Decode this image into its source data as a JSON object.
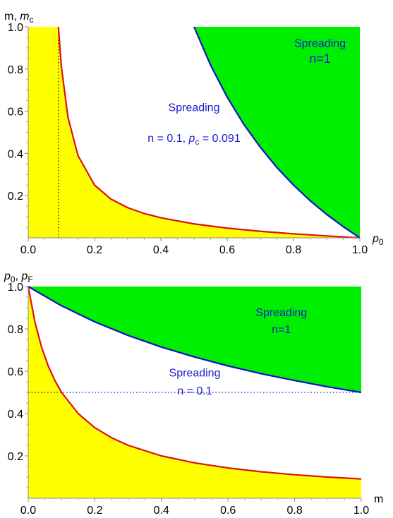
{
  "chart_data": [
    {
      "type": "area",
      "xlabel": "p",
      "xlabel_sub": "0",
      "ylabel_parts": [
        "m, ",
        "m",
        "c"
      ],
      "xlim": [
        0,
        1
      ],
      "ylim": [
        0,
        1
      ],
      "x_ticks": [
        "0.0",
        "0.2",
        "0.4",
        "0.6",
        "0.8",
        "1.0"
      ],
      "y_ticks": [
        "0.2",
        "0.4",
        "0.6",
        "0.8",
        "1.0"
      ],
      "x_tick_values": [
        0,
        0.2,
        0.4,
        0.6,
        0.8,
        1.0
      ],
      "y_tick_values": [
        0.2,
        0.4,
        0.6,
        0.8,
        1.0
      ],
      "series": [
        {
          "name": "n = 0.1",
          "color": "#e01010",
          "fill": "#ffff00",
          "x": [
            0.091,
            0.1,
            0.12,
            0.15,
            0.2,
            0.25,
            0.3,
            0.35,
            0.4,
            0.5,
            0.6,
            0.7,
            0.8,
            0.9,
            1.0
          ],
          "y": [
            1.0,
            0.81,
            0.57,
            0.39,
            0.25,
            0.183,
            0.143,
            0.115,
            0.095,
            0.066,
            0.046,
            0.031,
            0.019,
            0.009,
            0.0
          ]
        },
        {
          "name": "n=1",
          "color": "#1010c0",
          "fill": "#00ee00",
          "x": [
            0.5,
            0.55,
            0.6,
            0.65,
            0.7,
            0.75,
            0.8,
            0.85,
            0.9,
            0.95,
            1.0
          ],
          "y": [
            1.0,
            0.818,
            0.667,
            0.538,
            0.429,
            0.333,
            0.25,
            0.176,
            0.111,
            0.053,
            0.0
          ]
        }
      ],
      "vline": {
        "x": 0.091,
        "style": "dotted",
        "color": "#000000"
      },
      "annotations": [
        {
          "text": "Spreading",
          "x": 0.88,
          "y": 0.905
        },
        {
          "text": "n=1",
          "x": 0.88,
          "y": 0.83
        },
        {
          "text": "Spreading",
          "x": 0.5,
          "y": 0.6
        },
        {
          "text_parts": [
            "n = 0.1, ",
            "p",
            "c",
            " = 0.091"
          ],
          "x": 0.5,
          "y": 0.455
        }
      ]
    },
    {
      "type": "area",
      "xlabel": "m",
      "ylabel_parts": [
        "p",
        "0",
        ", ",
        "p",
        "F"
      ],
      "xlim": [
        0,
        1
      ],
      "ylim": [
        0,
        1
      ],
      "x_ticks": [
        "0.0",
        "0.2",
        "0.4",
        "0.6",
        "0.8",
        "1.0"
      ],
      "y_ticks": [
        "0.2",
        "0.4",
        "0.6",
        "0.8",
        "1.0"
      ],
      "x_tick_values": [
        0,
        0.2,
        0.4,
        0.6,
        0.8,
        1.0
      ],
      "y_tick_values": [
        0.2,
        0.4,
        0.6,
        0.8,
        1.0
      ],
      "series": [
        {
          "name": "n = 0.1",
          "color": "#e01010",
          "fill": "#ffff00",
          "x": [
            0.0,
            0.02,
            0.04,
            0.06,
            0.08,
            0.1,
            0.15,
            0.2,
            0.25,
            0.3,
            0.4,
            0.5,
            0.6,
            0.7,
            0.8,
            0.9,
            1.0
          ],
          "y": [
            1.0,
            0.833,
            0.714,
            0.625,
            0.556,
            0.5,
            0.4,
            0.333,
            0.286,
            0.25,
            0.2,
            0.167,
            0.143,
            0.125,
            0.111,
            0.1,
            0.091
          ]
        },
        {
          "name": "n=1",
          "color": "#1010c0",
          "fill": "#00ee00",
          "x": [
            0.0,
            0.1,
            0.2,
            0.3,
            0.4,
            0.5,
            0.6,
            0.7,
            0.8,
            0.9,
            1.0
          ],
          "y": [
            1.0,
            0.909,
            0.833,
            0.769,
            0.714,
            0.667,
            0.625,
            0.588,
            0.556,
            0.526,
            0.5
          ]
        }
      ],
      "hline": {
        "y": 0.5,
        "style": "dotted",
        "color": "#1010c0"
      },
      "annotations": [
        {
          "text": "Spreading",
          "x": 0.76,
          "y": 0.86
        },
        {
          "text": "n=1",
          "x": 0.76,
          "y": 0.78
        },
        {
          "text": "Spreading",
          "x": 0.5,
          "y": 0.575
        },
        {
          "text": "n = 0.1",
          "x": 0.5,
          "y": 0.49
        }
      ]
    }
  ]
}
